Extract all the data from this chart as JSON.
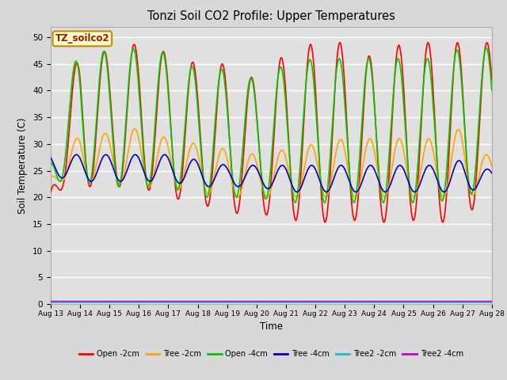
{
  "title": "Tonzi Soil CO2 Profile: Upper Temperatures",
  "xlabel": "Time",
  "ylabel": "Soil Temperature (C)",
  "watermark": "TZ_soilco2",
  "ylim": [
    0,
    52
  ],
  "yticks": [
    0,
    5,
    10,
    15,
    20,
    25,
    30,
    35,
    40,
    45,
    50
  ],
  "x_tick_labels": [
    "Aug 13",
    "Aug 14",
    "Aug 15",
    "Aug 16",
    "Aug 17",
    "Aug 18",
    "Aug 19",
    "Aug 20",
    "Aug 21",
    "Aug 22",
    "Aug 23",
    "Aug 24",
    "Aug 25",
    "Aug 26",
    "Aug 27",
    "Aug 28"
  ],
  "series": [
    {
      "label": "Open -2cm",
      "color": "#ff0000",
      "lw": 1.2
    },
    {
      "label": "Tree -2cm",
      "color": "#ffa500",
      "lw": 1.2
    },
    {
      "label": "Open -4cm",
      "color": "#00cc00",
      "lw": 1.2
    },
    {
      "label": "Tree -4cm",
      "color": "#0000cc",
      "lw": 1.2
    },
    {
      "label": "Tree2 -2cm",
      "color": "#00cccc",
      "lw": 1.2
    },
    {
      "label": "Tree2 -4cm",
      "color": "#cc00cc",
      "lw": 1.2
    }
  ],
  "bg_color": "#d8d8d8",
  "plot_bg_color": "#e0e0e0",
  "grid_color": "#ffffff",
  "n_days": 15,
  "pts_per_day": 144,
  "red_peaks": [
    21,
    49,
    47,
    49,
    47,
    45,
    45,
    42,
    47,
    49,
    49,
    46,
    49,
    49,
    49,
    49
  ],
  "red_troughs": [
    21,
    22,
    22,
    22,
    20,
    19,
    17,
    17,
    16,
    15,
    16,
    15,
    16,
    15,
    16,
    21
  ],
  "org_peaks": [
    24,
    32,
    32,
    33,
    31,
    30,
    29,
    28,
    29,
    30,
    31,
    31,
    31,
    31,
    33,
    27
  ],
  "org_troughs": [
    23,
    23,
    23,
    22,
    22,
    21,
    20,
    20,
    20,
    20,
    20,
    20,
    20,
    20,
    20,
    21
  ],
  "grn_peaks": [
    28,
    49,
    47,
    48,
    47,
    44,
    44,
    42,
    45,
    46,
    46,
    46,
    46,
    46,
    48,
    48
  ],
  "grn_troughs": [
    23,
    23,
    22,
    22,
    22,
    20,
    20,
    20,
    19,
    19,
    19,
    19,
    19,
    19,
    20,
    22
  ],
  "blu_peaks": [
    28,
    28,
    28,
    28,
    28,
    27,
    26,
    26,
    26,
    26,
    26,
    26,
    26,
    26,
    27,
    25
  ],
  "blu_troughs": [
    24,
    23,
    23,
    23,
    23,
    22,
    22,
    22,
    21,
    21,
    21,
    21,
    21,
    21,
    21,
    22
  ],
  "cyan_val": 0.3,
  "magenta_val": 0.5
}
